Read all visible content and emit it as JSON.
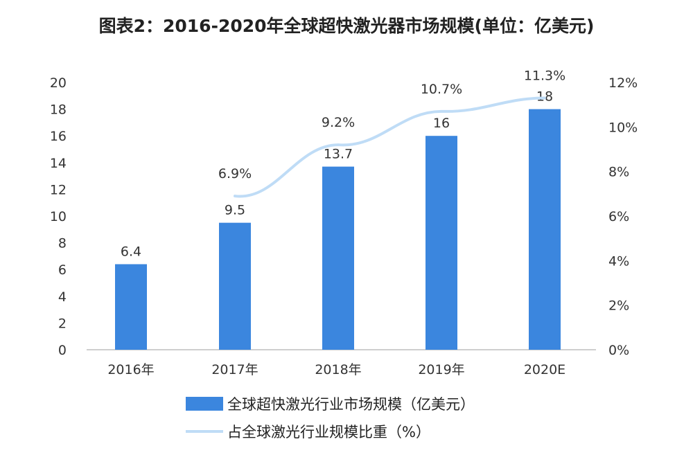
{
  "title": "图表2：2016-2020年全球超快激光器市场规模(单位：亿美元)",
  "colors": {
    "bar": "#3b86de",
    "line": "#bfdcf6",
    "axis": "#bdbdbd"
  },
  "legend": {
    "bar_label": "全球超快激光行业市场规模（亿美元）",
    "line_label": "占全球激光行业规模比重（%）"
  },
  "chart_data": {
    "type": "bar",
    "categories": [
      "2016年",
      "2017年",
      "2018年",
      "2019年",
      "2020E"
    ],
    "series": [
      {
        "name": "全球超快激光行业市场规模（亿美元）",
        "type": "bar",
        "axis": "left",
        "values": [
          6.4,
          9.5,
          13.7,
          16,
          18
        ],
        "labels": [
          "6.4",
          "9.5",
          "13.7",
          "16",
          "18"
        ]
      },
      {
        "name": "占全球激光行业规模比重（%）",
        "type": "line",
        "axis": "right",
        "values": [
          null,
          6.9,
          9.2,
          10.7,
          11.3
        ],
        "labels": [
          "",
          "6.9%",
          "9.2%",
          "10.7%",
          "11.3%"
        ]
      }
    ],
    "ylim": [
      0,
      20
    ],
    "yticks": [
      "0",
      "2",
      "4",
      "6",
      "8",
      "10",
      "12",
      "14",
      "16",
      "18",
      "20"
    ],
    "y2lim": [
      0,
      12
    ],
    "y2ticks": [
      "0%",
      "2%",
      "4%",
      "6%",
      "8%",
      "10%",
      "12%"
    ],
    "legend_position": "bottom"
  }
}
